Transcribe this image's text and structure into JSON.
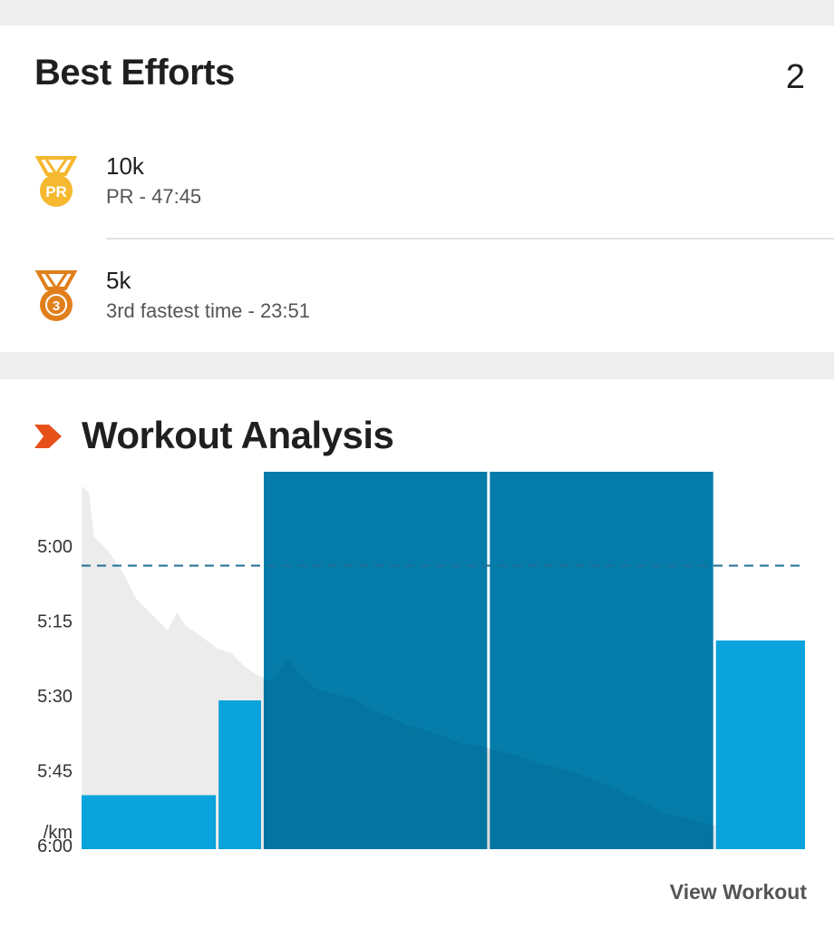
{
  "best_efforts": {
    "title": "Best Efforts",
    "count": "2",
    "items": [
      {
        "medal_icon": "pr-medal-icon",
        "medal_text": "PR",
        "medal_color": "#f5b82e",
        "title": "10k",
        "subtitle": "PR - 47:45"
      },
      {
        "medal_icon": "bronze-medal-3-icon",
        "medal_text": "3",
        "medal_color": "#e07f1c",
        "title": "5k",
        "subtitle": "3rd fastest time - 23:51"
      }
    ]
  },
  "workout_analysis": {
    "title": "Workout Analysis",
    "accent_color": "#e8501a",
    "view_link": "View Workout"
  },
  "chart_data": {
    "type": "bar",
    "y_ticks": [
      "5:00",
      "5:15",
      "5:30",
      "5:45",
      "6:00"
    ],
    "y_unit_label": "/km",
    "y_axis": "pace (min/km), inverted",
    "ylim_seconds": [
      276,
      369
    ],
    "target_pace_line_seconds": 315,
    "bars": [
      {
        "pace_seconds": 361,
        "highlighted": false
      },
      {
        "pace_seconds": 342,
        "highlighted": false
      },
      {
        "pace_seconds": 276,
        "highlighted": true
      },
      {
        "pace_seconds": 276,
        "highlighted": true
      },
      {
        "pace_seconds": 330,
        "highlighted": false
      }
    ],
    "bar_widths": [
      1.5,
      0.5,
      2.5,
      2.5,
      1
    ],
    "colors": {
      "bar": "#0aa3dc",
      "bar_highlight": "#0079a8",
      "area": "#ececec",
      "target_line": "#1f6e95"
    }
  }
}
